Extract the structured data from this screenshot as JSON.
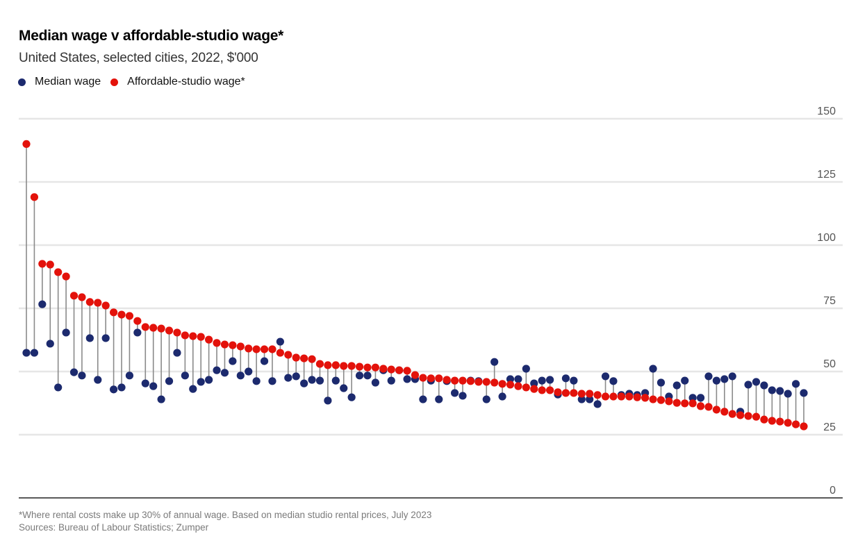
{
  "header": {
    "title": "Median wage v affordable-studio wage*",
    "subtitle": "United States, selected cities, 2022, $'000"
  },
  "legend": [
    {
      "label": "Median wage",
      "color": "#1c2a6e"
    },
    {
      "label": "Affordable-studio wage*",
      "color": "#e3120b"
    }
  ],
  "footer": {
    "note": "*Where rental costs make up 30% of annual wage. Based on median studio rental prices, July 2023",
    "source": "Sources: Bureau of Labour Statistics; Zumper"
  },
  "chart_data": {
    "type": "scatter",
    "subtype": "dumbbell",
    "title": "Median wage v affordable-studio wage*",
    "subtitle": "United States, selected cities, 2022, $'000",
    "xlabel": "",
    "ylabel": "",
    "ylim": [
      0,
      150
    ],
    "yticks": [
      0,
      25,
      50,
      75,
      100,
      125,
      150
    ],
    "ytick_labels": [
      "0",
      "25",
      "50",
      "75",
      "100",
      "125",
      "150"
    ],
    "yaxis_position": "right",
    "grid": true,
    "legend_position": "top-left",
    "series": [
      {
        "name": "Median wage",
        "color": "#1c2a6e",
        "values": [
          57.4,
          57.4,
          76.6,
          61,
          43.7,
          65.4,
          49.7,
          48.4,
          63.2,
          46.7,
          63.2,
          42.9,
          43.7,
          48.4,
          65.4,
          45.3,
          44.2,
          39,
          46.2,
          57.4,
          48.4,
          43.1,
          45.9,
          46.7,
          50.5,
          49.5,
          54.1,
          48.4,
          50,
          46.2,
          54.1,
          46.2,
          61.8,
          47.5,
          48.1,
          45.3,
          46.7,
          46.4,
          38.5,
          46.4,
          43.4,
          39.8,
          48.4,
          48.4,
          45.6,
          50.5,
          46.4,
          50.5,
          47,
          47,
          39,
          46.4,
          39,
          46.2,
          41.5,
          40.4,
          46.4,
          46.2,
          39,
          53.8,
          40.1,
          47,
          47,
          51.1,
          45.3,
          46.4,
          46.7,
          40.9,
          47.3,
          46.4,
          39,
          39,
          37.1,
          48.1,
          46.2,
          40.7,
          41.2,
          40.7,
          41.5,
          51.1,
          45.6,
          40.1,
          44.5,
          46.4,
          39.6,
          39.6,
          48.1,
          46.4,
          47,
          48.1,
          34.1,
          44.8,
          45.9,
          44.5,
          42.6,
          42.3,
          41.2,
          45.1,
          41.5
        ]
      },
      {
        "name": "Affordable-studio wage*",
        "color": "#e3120b",
        "values": [
          140,
          119,
          92.6,
          92.3,
          89.3,
          87.6,
          80,
          79.4,
          77.5,
          77.2,
          76.1,
          73.4,
          72.5,
          72,
          70,
          67.6,
          67.3,
          67,
          66.2,
          65.4,
          64.3,
          64,
          63.7,
          62.6,
          61.3,
          60.7,
          60.4,
          59.9,
          59.1,
          58.8,
          58.8,
          58.8,
          57.4,
          56.6,
          55.5,
          55.2,
          54.9,
          53,
          52.5,
          52.5,
          52.2,
          52.2,
          51.9,
          51.6,
          51.6,
          51.1,
          50.8,
          50.5,
          50.3,
          48.6,
          47.5,
          47.3,
          47.3,
          46.7,
          46.4,
          46.4,
          46.2,
          45.9,
          45.9,
          45.6,
          45.1,
          44.8,
          44.2,
          43.7,
          43.1,
          42.6,
          42.6,
          41.8,
          41.5,
          41.5,
          41.2,
          41.2,
          40.7,
          40.1,
          40.1,
          40.1,
          40.1,
          39.8,
          39.6,
          39,
          38.7,
          38.2,
          37.6,
          37.4,
          37.4,
          36.3,
          36,
          34.9,
          34.1,
          33.2,
          32.7,
          32.4,
          32.1,
          31,
          30.5,
          30.2,
          29.7,
          29.1,
          28.3
        ]
      }
    ]
  }
}
